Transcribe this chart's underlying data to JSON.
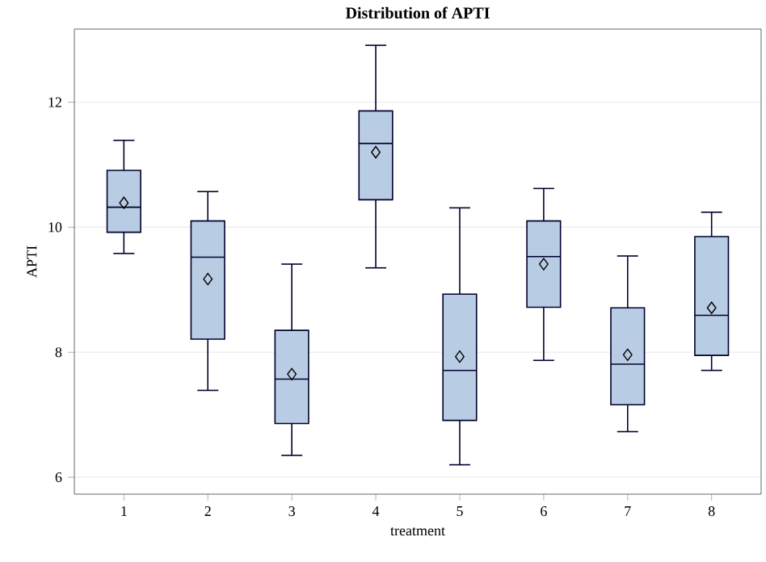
{
  "chart_data": {
    "type": "box",
    "title": "Distribution of APTI",
    "xlabel": "treatment",
    "ylabel": "APTI",
    "categories": [
      "1",
      "2",
      "3",
      "4",
      "5",
      "6",
      "7",
      "8"
    ],
    "boxes": [
      {
        "low": 9.58,
        "q1": 9.92,
        "median": 10.32,
        "q3": 10.91,
        "high": 11.39,
        "mean": 10.39
      },
      {
        "low": 7.39,
        "q1": 8.21,
        "median": 9.52,
        "q3": 10.1,
        "high": 10.57,
        "mean": 9.17
      },
      {
        "low": 6.35,
        "q1": 6.86,
        "median": 7.57,
        "q3": 8.35,
        "high": 9.41,
        "mean": 7.65
      },
      {
        "low": 9.35,
        "q1": 10.44,
        "median": 11.34,
        "q3": 11.86,
        "high": 12.91,
        "mean": 11.2
      },
      {
        "low": 6.2,
        "q1": 6.91,
        "median": 7.71,
        "q3": 8.93,
        "high": 10.31,
        "mean": 7.93
      },
      {
        "low": 7.87,
        "q1": 8.72,
        "median": 9.53,
        "q3": 10.1,
        "high": 10.62,
        "mean": 9.41
      },
      {
        "low": 6.73,
        "q1": 7.16,
        "median": 7.81,
        "q3": 8.71,
        "high": 9.54,
        "mean": 7.96
      },
      {
        "low": 7.71,
        "q1": 7.95,
        "median": 8.59,
        "q3": 9.85,
        "high": 10.24,
        "mean": 8.71
      }
    ],
    "color": "#b8cce4",
    "ylim": [
      5.73,
      13.17
    ],
    "yticks": [
      6,
      8,
      10,
      12
    ],
    "grid": "y",
    "marker": "diamond"
  }
}
